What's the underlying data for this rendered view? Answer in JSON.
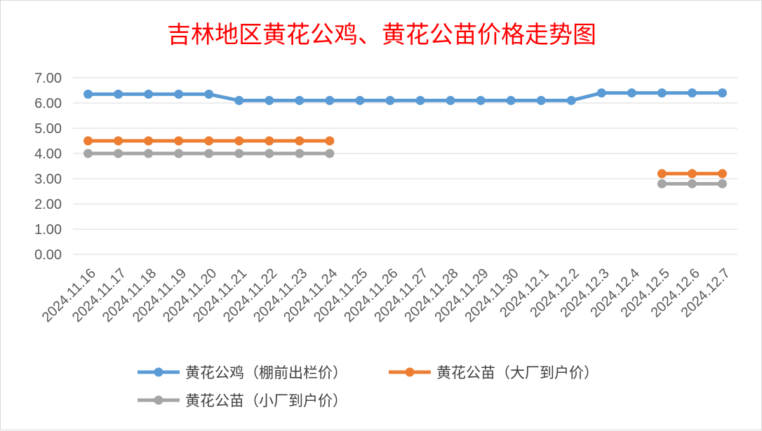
{
  "chart_data": {
    "type": "line",
    "title": "吉林地区黄花公鸡、黄花公苗价格走势图",
    "categories": [
      "2024.11.16",
      "2024.11.17",
      "2024.11.18",
      "2024.11.19",
      "2024.11.20",
      "2024.11.21",
      "2024.11.22",
      "2024.11.23",
      "2024.11.24",
      "2024.11.25",
      "2024.11.26",
      "2024.11.27",
      "2024.11.28",
      "2024.11.29",
      "2024.11.30",
      "2024.12.1",
      "2024.12.2",
      "2024.12.3",
      "2024.12.4",
      "2024.12.5",
      "2024.12.6",
      "2024.12.7"
    ],
    "ylim": [
      0,
      7
    ],
    "yticks": [
      "0.00",
      "1.00",
      "2.00",
      "3.00",
      "4.00",
      "5.00",
      "6.00",
      "7.00"
    ],
    "grid": true,
    "legend_position": "bottom",
    "series": [
      {
        "name": "黄花公鸡（棚前出栏价）",
        "color": "#5b9bd5",
        "values": [
          6.35,
          6.35,
          6.35,
          6.35,
          6.35,
          6.1,
          6.1,
          6.1,
          6.1,
          6.1,
          6.1,
          6.1,
          6.1,
          6.1,
          6.1,
          6.1,
          6.1,
          6.4,
          6.4,
          6.4,
          6.4,
          6.4
        ]
      },
      {
        "name": "黄花公苗（大厂到户价）",
        "color": "#ed7d31",
        "values": [
          4.5,
          4.5,
          4.5,
          4.5,
          4.5,
          4.5,
          4.5,
          4.5,
          4.5,
          null,
          null,
          null,
          null,
          null,
          null,
          null,
          null,
          null,
          null,
          3.2,
          3.2,
          3.2
        ]
      },
      {
        "name": "黄花公苗（小厂到户价）",
        "color": "#a5a5a5",
        "values": [
          4.0,
          4.0,
          4.0,
          4.0,
          4.0,
          4.0,
          4.0,
          4.0,
          4.0,
          null,
          null,
          null,
          null,
          null,
          null,
          null,
          null,
          null,
          null,
          2.8,
          2.8,
          2.8
        ]
      }
    ]
  }
}
